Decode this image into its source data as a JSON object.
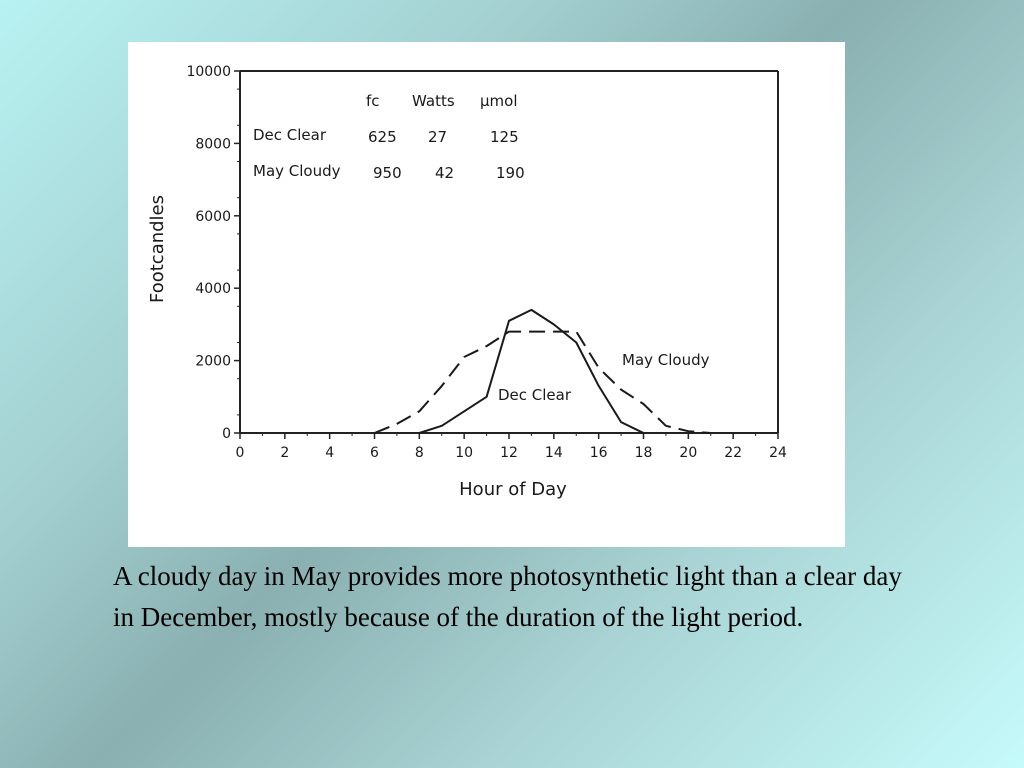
{
  "slide": {
    "caption": "A cloudy day in May provides more photosynthetic light than a clear day in December, mostly because of the duration of the light period."
  },
  "chart_data": {
    "type": "line",
    "xlabel": "Hour of Day",
    "ylabel": "Footcandles",
    "xlim": [
      0,
      24
    ],
    "ylim": [
      0,
      10000
    ],
    "x_ticks": [
      "0",
      "2",
      "4",
      "6",
      "8",
      "10",
      "12",
      "14",
      "16",
      "18",
      "20",
      "22",
      "24"
    ],
    "y_ticks": [
      "0",
      "2000",
      "4000",
      "6000",
      "8000",
      "10000"
    ],
    "grid": false,
    "series": [
      {
        "name": "May Cloudy",
        "style": "dashed",
        "x": [
          6,
          7,
          8,
          9,
          10,
          11,
          12,
          13,
          14,
          15,
          16,
          17,
          18,
          19,
          20,
          21
        ],
        "y": [
          0,
          250,
          600,
          1300,
          2100,
          2400,
          2800,
          2800,
          2800,
          2800,
          1800,
          1200,
          800,
          200,
          50,
          0
        ]
      },
      {
        "name": "Dec Clear",
        "style": "solid",
        "x": [
          8,
          9,
          10,
          11,
          12,
          13,
          14,
          15,
          16,
          17,
          18
        ],
        "y": [
          0,
          200,
          600,
          1000,
          3100,
          3400,
          3000,
          2500,
          1300,
          300,
          0
        ]
      }
    ],
    "inset_table": {
      "headers": [
        "fc",
        "Watts",
        "μmol"
      ],
      "rows": [
        {
          "label": "Dec Clear",
          "values": [
            "625",
            "27",
            "125"
          ]
        },
        {
          "label": "May Cloudy",
          "values": [
            "950",
            "42",
            "190"
          ]
        }
      ]
    }
  }
}
